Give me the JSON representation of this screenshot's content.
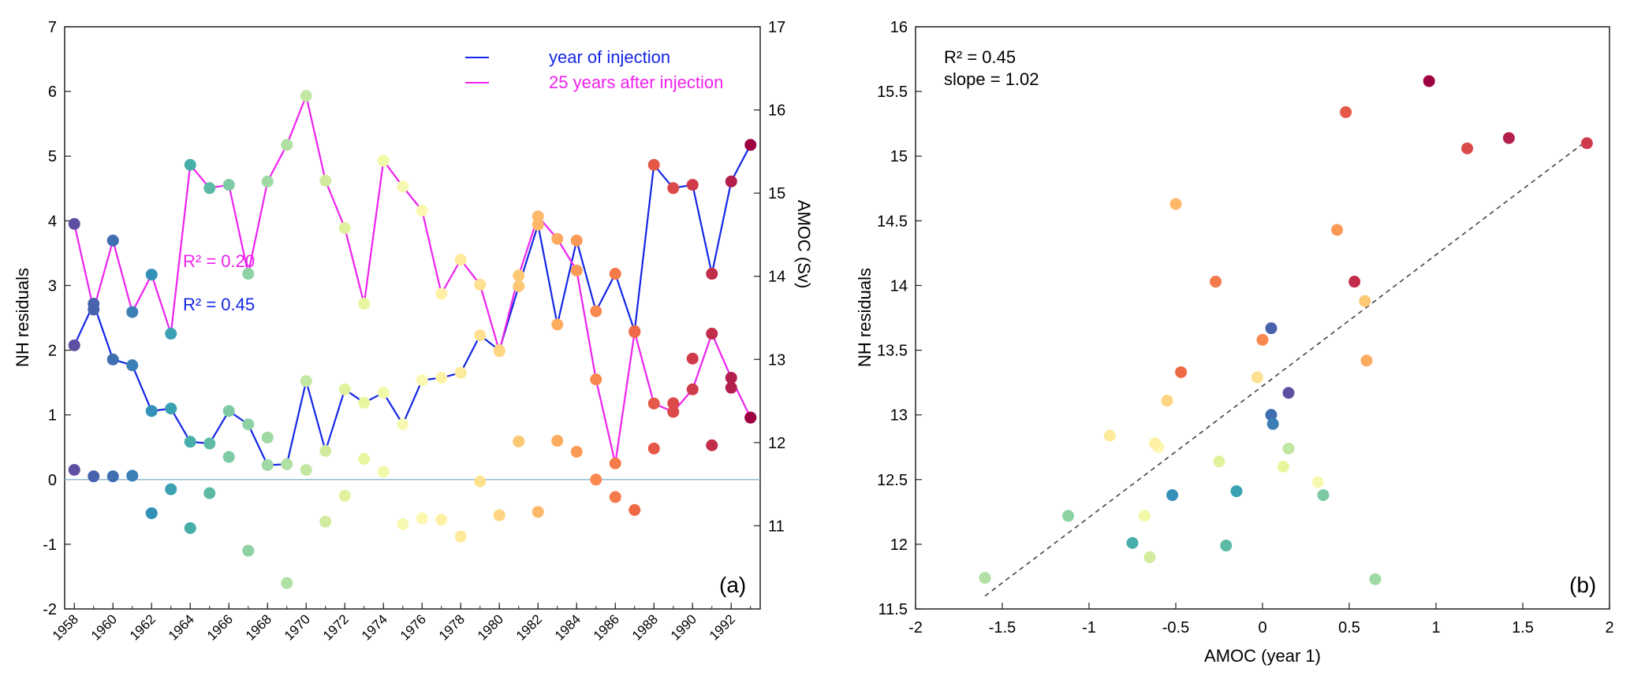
{
  "chart_data": [
    {
      "panel": "(a)",
      "type": "line",
      "xlabel": "",
      "ylabel": "NH residuals",
      "y2label": "AMOC (Sv)",
      "ylim": [
        -2,
        7
      ],
      "y2lim": [
        10,
        17
      ],
      "xlim": [
        1957.5,
        1993.5
      ],
      "xticks": [
        "1958",
        "1960",
        "1962",
        "1964",
        "1966",
        "1968",
        "1970",
        "1972",
        "1974",
        "1976",
        "1978",
        "1980",
        "1982",
        "1984",
        "1986",
        "1988",
        "1990",
        "1992"
      ],
      "yticks": [
        "-2",
        "-1",
        "0",
        "1",
        "2",
        "3",
        "4",
        "5",
        "6",
        "7"
      ],
      "y2ticks": [
        "11",
        "12",
        "13",
        "14",
        "15",
        "16",
        "17"
      ],
      "x": [
        1958,
        1959,
        1960,
        1961,
        1962,
        1963,
        1964,
        1965,
        1966,
        1967,
        1968,
        1969,
        1970,
        1971,
        1972,
        1973,
        1974,
        1975,
        1976,
        1977,
        1978,
        1979,
        1980,
        1981,
        1982,
        1983,
        1984,
        1985,
        1986,
        1987,
        1988,
        1989,
        1990,
        1991,
        1992,
        1993
      ],
      "residuals": [
        0.15,
        0.05,
        0.05,
        0.06,
        -0.52,
        -0.15,
        -0.75,
        -0.21,
        0.35,
        -1.1,
        0.65,
        -1.6,
        0.15,
        -0.65,
        -0.25,
        0.32,
        0.12,
        -0.69,
        -0.6,
        -0.62,
        -0.88,
        -0.03,
        -0.55,
        0.59,
        -0.5,
        0.6,
        0.43,
        0.0,
        -0.27,
        -0.47,
        0.48,
        1.18,
        1.87,
        0.53,
        1.42,
        0.96
      ],
      "series": [
        {
          "name": "year of injection",
          "color": "#1426e6",
          "values": [
            13.17,
            13.67,
            13.0,
            12.93,
            12.38,
            12.41,
            12.01,
            11.99,
            12.38,
            12.22,
            11.73,
            11.74,
            12.74,
            11.9,
            12.64,
            12.48,
            12.6,
            12.22,
            12.75,
            12.78,
            12.84,
            13.29,
            13.11,
            13.88,
            14.62,
            13.42,
            14.43,
            13.58,
            14.03,
            13.34,
            15.34,
            15.06,
            15.1,
            14.03,
            15.14,
            15.58
          ]
        },
        {
          "name": "25 years after injection",
          "color": "#ee22ee",
          "values": [
            14.63,
            13.6,
            14.43,
            13.57,
            14.02,
            13.31,
            15.34,
            15.06,
            15.1,
            14.03,
            15.14,
            15.58,
            16.17,
            15.15,
            14.58,
            13.67,
            15.39,
            15.08,
            14.79,
            13.79,
            14.2,
            13.9,
            13.1,
            14.01,
            14.72,
            14.45,
            14.07,
            12.76,
            11.75,
            13.33,
            12.47,
            12.37,
            12.64,
            13.31,
            12.78,
            12.3
          ]
        }
      ],
      "point_colors": [
        "#5e4fa2",
        "#4862ad",
        "#3f6fb0",
        "#3a7fb6",
        "#3390b8",
        "#3aa1b3",
        "#48aeaa",
        "#5cbaa6",
        "#7dcaa4",
        "#8ed2a3",
        "#9fd9a3",
        "#b0e0a4",
        "#c2e7a2",
        "#d1ec9e",
        "#e0f29e",
        "#eaf69f",
        "#f2f9a9",
        "#f7f9b3",
        "#fdf8b1",
        "#fef1a6",
        "#feea9b",
        "#fee190",
        "#fed683",
        "#fdc876",
        "#fdb969",
        "#fdab5f",
        "#fb9a56",
        "#f88a4f",
        "#f47a4a",
        "#ee6a46",
        "#e55847",
        "#db4949",
        "#d03b4b",
        "#c22d4b",
        "#b41f4c",
        "#9e0142"
      ],
      "legend": [
        {
          "label": "year of injection",
          "color": "#1426e6"
        },
        {
          "label": "25 years after injection",
          "color": "#ee22ee"
        }
      ],
      "annotations": [
        {
          "text": "R² = 0.20",
          "color": "#ee22ee"
        },
        {
          "text": "R² = 0.45",
          "color": "#1426e6"
        }
      ],
      "panel_label": "(a)"
    },
    {
      "panel": "(b)",
      "type": "scatter",
      "xlabel": "AMOC (year 1)",
      "ylabel": "NH residuals",
      "xlim": [
        -2,
        2
      ],
      "ylim": [
        11.5,
        16
      ],
      "xticks": [
        "-2",
        "-1.5",
        "-1",
        "-0.5",
        "0",
        "0.5",
        "1",
        "1.5",
        "2"
      ],
      "yticks": [
        "11.5",
        "12",
        "12.5",
        "13",
        "13.5",
        "14",
        "14.5",
        "15",
        "15.5",
        "16"
      ],
      "stats": [
        "R² = 0.45",
        "slope = 1.02"
      ],
      "fit_line": {
        "x": [
          -1.6,
          1.85
        ],
        "y": [
          11.6,
          15.1
        ]
      },
      "points": [
        {
          "x": 0.15,
          "y": 13.17,
          "c": "#5e4fa2"
        },
        {
          "x": 0.05,
          "y": 13.67,
          "c": "#4862ad"
        },
        {
          "x": 0.05,
          "y": 13.0,
          "c": "#3f6fb0"
        },
        {
          "x": 0.06,
          "y": 12.93,
          "c": "#3a7fb6"
        },
        {
          "x": -0.52,
          "y": 12.38,
          "c": "#3390b8"
        },
        {
          "x": -0.15,
          "y": 12.41,
          "c": "#3aa1b3"
        },
        {
          "x": -0.75,
          "y": 12.01,
          "c": "#48aeaa"
        },
        {
          "x": -0.21,
          "y": 11.99,
          "c": "#5cbaa6"
        },
        {
          "x": 0.35,
          "y": 12.38,
          "c": "#7dcaa4"
        },
        {
          "x": -1.12,
          "y": 12.22,
          "c": "#8ed2a3"
        },
        {
          "x": 0.65,
          "y": 11.73,
          "c": "#9fd9a3"
        },
        {
          "x": -1.6,
          "y": 11.74,
          "c": "#b0e0a4"
        },
        {
          "x": 0.15,
          "y": 12.74,
          "c": "#c2e7a2"
        },
        {
          "x": -0.65,
          "y": 11.9,
          "c": "#d1ec9e"
        },
        {
          "x": -0.25,
          "y": 12.64,
          "c": "#e0f29e"
        },
        {
          "x": 0.12,
          "y": 12.6,
          "c": "#eaf69f"
        },
        {
          "x": -0.68,
          "y": 12.22,
          "c": "#f2f9a9"
        },
        {
          "x": 0.32,
          "y": 12.48,
          "c": "#f7f9b3"
        },
        {
          "x": -0.6,
          "y": 12.75,
          "c": "#fdf8b1"
        },
        {
          "x": -0.62,
          "y": 12.78,
          "c": "#fef1a6"
        },
        {
          "x": -0.88,
          "y": 12.84,
          "c": "#feea9b"
        },
        {
          "x": -0.03,
          "y": 13.29,
          "c": "#fee190"
        },
        {
          "x": -0.55,
          "y": 13.11,
          "c": "#fed683"
        },
        {
          "x": 0.59,
          "y": 13.88,
          "c": "#fdc876"
        },
        {
          "x": -0.5,
          "y": 14.63,
          "c": "#fdb969"
        },
        {
          "x": 0.6,
          "y": 13.42,
          "c": "#fdab5f"
        },
        {
          "x": 0.43,
          "y": 14.43,
          "c": "#fb9a56"
        },
        {
          "x": 0.0,
          "y": 13.58,
          "c": "#f88a4f"
        },
        {
          "x": -0.27,
          "y": 14.03,
          "c": "#f47a4a"
        },
        {
          "x": -0.47,
          "y": 13.33,
          "c": "#ee6a46"
        },
        {
          "x": 0.48,
          "y": 15.34,
          "c": "#e55847"
        },
        {
          "x": 1.18,
          "y": 15.06,
          "c": "#db4949"
        },
        {
          "x": 1.87,
          "y": 15.1,
          "c": "#d03b4b"
        },
        {
          "x": 0.53,
          "y": 14.03,
          "c": "#c22d4b"
        },
        {
          "x": 1.42,
          "y": 15.14,
          "c": "#b41f4c"
        },
        {
          "x": 0.96,
          "y": 15.58,
          "c": "#9e0142"
        }
      ],
      "panel_label": "(b)"
    }
  ]
}
